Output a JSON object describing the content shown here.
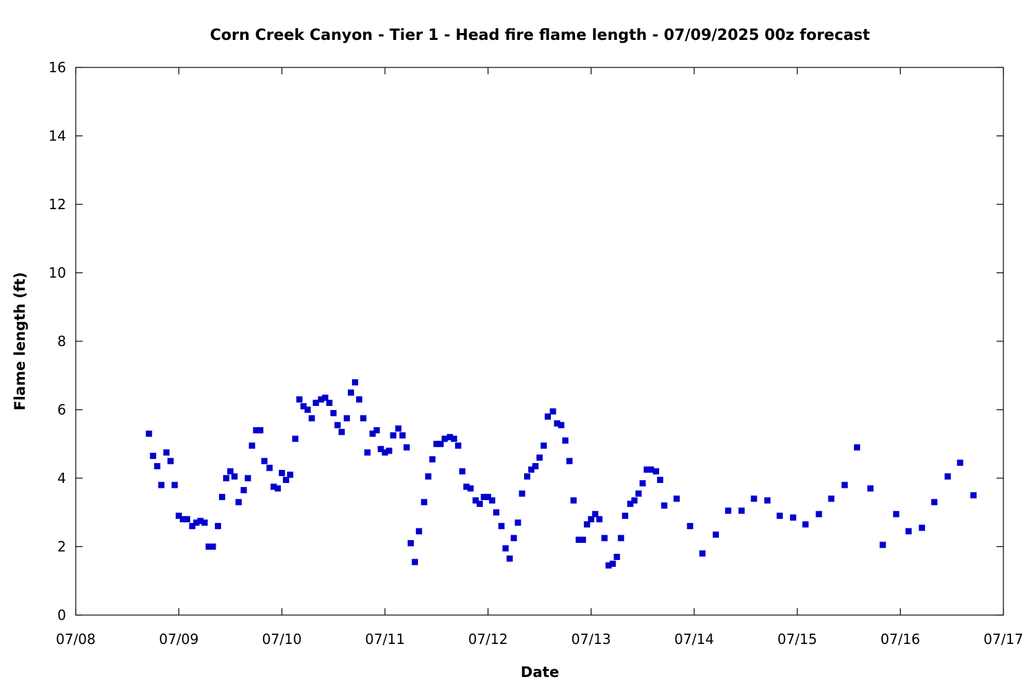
{
  "chart_data": {
    "type": "scatter",
    "title": "Corn Creek Canyon - Tier 1 - Head fire flame length - 07/09/2025 00z forecast",
    "xlabel": "Date",
    "ylabel": "Flame length (ft)",
    "xlim": [
      0,
      9
    ],
    "ylim": [
      0,
      16
    ],
    "x_tick_labels": [
      "07/08",
      "07/09",
      "07/10",
      "07/11",
      "07/12",
      "07/13",
      "07/14",
      "07/15",
      "07/16",
      "07/17"
    ],
    "y_tick_labels": [
      "0",
      "2",
      "4",
      "6",
      "8",
      "10",
      "12",
      "14",
      "16"
    ],
    "x_unit_note": "x values are days measured from 07/08 00:00",
    "grid": false,
    "marker_color": "#0000cc",
    "series": [
      {
        "name": "Head fire flame length",
        "x": [
          0.71,
          0.75,
          0.79,
          0.83,
          0.88,
          0.92,
          0.96,
          1.0,
          1.04,
          1.08,
          1.13,
          1.17,
          1.21,
          1.25,
          1.29,
          1.33,
          1.38,
          1.42,
          1.46,
          1.5,
          1.54,
          1.58,
          1.63,
          1.67,
          1.71,
          1.75,
          1.79,
          1.83,
          1.88,
          1.92,
          1.96,
          2.0,
          2.04,
          2.08,
          2.13,
          2.17,
          2.21,
          2.25,
          2.29,
          2.33,
          2.38,
          2.42,
          2.46,
          2.5,
          2.54,
          2.58,
          2.63,
          2.67,
          2.71,
          2.75,
          2.79,
          2.83,
          2.88,
          2.92,
          2.96,
          3.0,
          3.04,
          3.08,
          3.13,
          3.17,
          3.21,
          3.25,
          3.29,
          3.33,
          3.38,
          3.42,
          3.46,
          3.5,
          3.54,
          3.58,
          3.63,
          3.67,
          3.71,
          3.75,
          3.79,
          3.83,
          3.88,
          3.92,
          3.96,
          4.0,
          4.04,
          4.08,
          4.13,
          4.17,
          4.21,
          4.25,
          4.29,
          4.33,
          4.38,
          4.42,
          4.46,
          4.5,
          4.54,
          4.58,
          4.63,
          4.67,
          4.71,
          4.75,
          4.79,
          4.83,
          4.88,
          4.92,
          4.96,
          5.0,
          5.04,
          5.08,
          5.13,
          5.17,
          5.21,
          5.25,
          5.29,
          5.33,
          5.38,
          5.42,
          5.46,
          5.5,
          5.54,
          5.58,
          5.63,
          5.67,
          5.71,
          5.83,
          5.96,
          6.08,
          6.21,
          6.33,
          6.46,
          6.58,
          6.71,
          6.83,
          6.96,
          7.08,
          7.21,
          7.33,
          7.46,
          7.58,
          7.71,
          7.83,
          7.96,
          8.08,
          8.21,
          8.33,
          8.46,
          8.58,
          8.71
        ],
        "y": [
          5.3,
          4.65,
          4.35,
          3.8,
          4.75,
          4.5,
          3.8,
          2.9,
          2.8,
          2.8,
          2.6,
          2.7,
          2.75,
          2.7,
          2.0,
          2.0,
          2.6,
          3.45,
          4.0,
          4.2,
          4.05,
          3.3,
          3.65,
          4.0,
          4.95,
          5.4,
          5.4,
          4.5,
          4.3,
          3.75,
          3.7,
          4.15,
          3.95,
          4.1,
          5.15,
          6.3,
          6.1,
          6.0,
          5.75,
          6.2,
          6.3,
          6.35,
          6.2,
          5.9,
          5.55,
          5.35,
          5.75,
          6.5,
          6.8,
          6.3,
          5.75,
          4.75,
          5.3,
          5.4,
          4.85,
          4.75,
          4.8,
          5.25,
          5.45,
          5.25,
          4.9,
          2.1,
          1.55,
          2.45,
          3.3,
          4.05,
          4.55,
          5.0,
          5.0,
          5.15,
          5.2,
          5.15,
          4.95,
          4.2,
          3.75,
          3.7,
          3.35,
          3.25,
          3.45,
          3.45,
          3.35,
          3.0,
          2.6,
          1.95,
          1.65,
          2.25,
          2.7,
          3.55,
          4.05,
          4.25,
          4.35,
          4.6,
          4.95,
          5.8,
          5.95,
          5.6,
          5.55,
          5.1,
          4.5,
          3.35,
          2.2,
          2.2,
          2.65,
          2.8,
          2.95,
          2.8,
          2.25,
          1.45,
          1.5,
          1.7,
          2.25,
          2.9,
          3.25,
          3.35,
          3.55,
          3.85,
          4.25,
          4.25,
          4.2,
          3.95,
          3.2,
          3.4,
          2.6,
          1.8,
          2.35,
          3.05,
          3.05,
          3.4,
          3.35,
          2.9,
          2.85,
          2.65,
          2.95,
          3.4,
          3.8,
          4.9,
          3.7,
          2.05,
          2.95,
          2.45,
          2.55,
          3.3,
          4.05,
          4.45,
          3.5
        ]
      }
    ]
  }
}
